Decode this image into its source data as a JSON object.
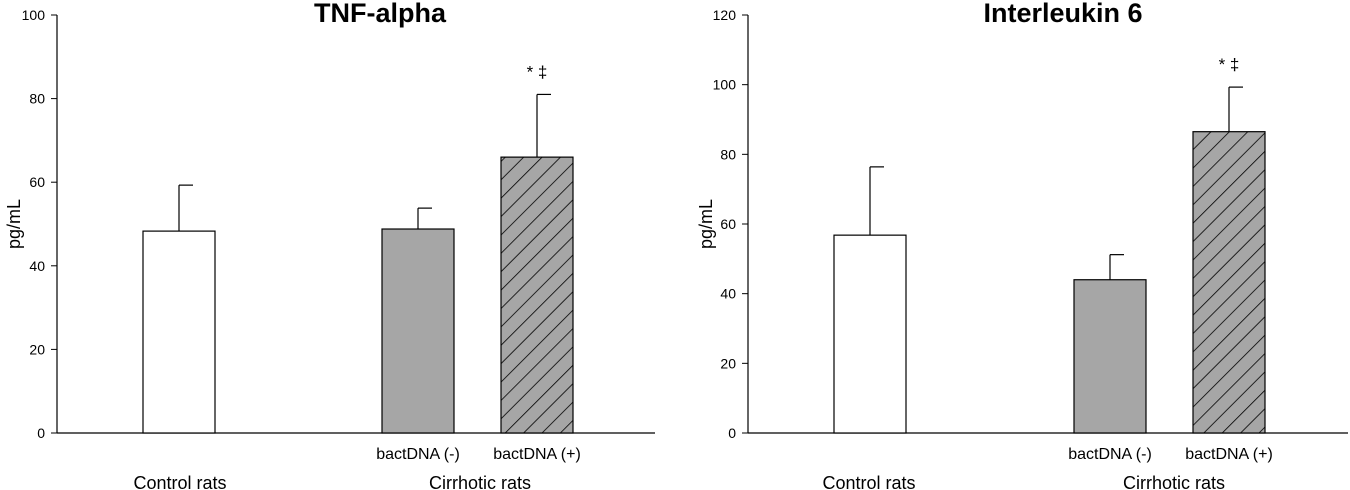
{
  "chart_data": [
    {
      "type": "bar",
      "title": "TNF-alpha",
      "ylabel": "pg/mL",
      "ylim": [
        0,
        100
      ],
      "yticks": [
        0,
        20,
        40,
        60,
        80,
        100
      ],
      "categories": [
        "",
        "bactDNA (-)",
        "bactDNA (+)"
      ],
      "groups": [
        "Control rats",
        "Cirrhotic rats"
      ],
      "values": [
        48.3,
        48.8,
        66.0
      ],
      "errors": [
        11.0,
        5.0,
        15.0
      ],
      "fills": [
        "#ffffff",
        "#a6a6a6",
        "#a6a6a6"
      ],
      "hatched": [
        false,
        false,
        true
      ],
      "annotations": [
        "",
        "",
        "* ‡"
      ],
      "grid": false
    },
    {
      "type": "bar",
      "title": "Interleukin 6",
      "ylabel": "pg/mL",
      "ylim": [
        0,
        120
      ],
      "yticks": [
        0,
        20,
        40,
        60,
        80,
        100,
        120
      ],
      "categories": [
        "",
        "bactDNA (-)",
        "bactDNA (+)"
      ],
      "groups": [
        "Control rats",
        "Cirrhotic rats"
      ],
      "values": [
        56.8,
        44.0,
        86.5
      ],
      "errors": [
        19.6,
        7.2,
        12.8
      ],
      "fills": [
        "#ffffff",
        "#a6a6a6",
        "#a6a6a6"
      ],
      "hatched": [
        false,
        false,
        true
      ],
      "annotations": [
        "",
        "",
        "* ‡"
      ],
      "grid": false
    }
  ]
}
